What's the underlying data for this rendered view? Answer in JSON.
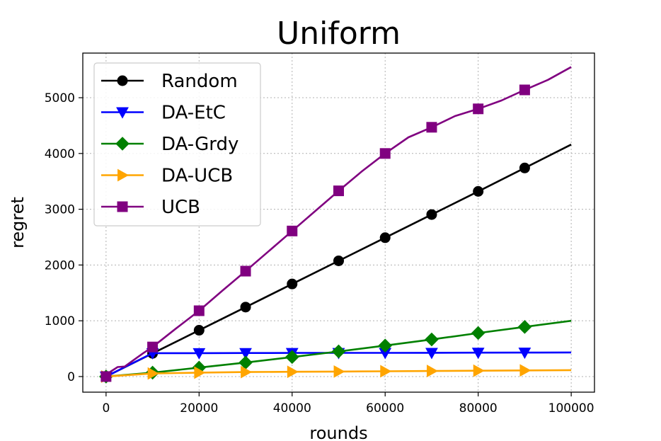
{
  "chart_data": {
    "type": "line",
    "title": "Uniform",
    "xlabel": "rounds",
    "ylabel": "regret",
    "xlim": [
      -5000,
      105000
    ],
    "ylim": [
      -280,
      5800
    ],
    "xticks": [
      0,
      20000,
      40000,
      60000,
      80000,
      100000
    ],
    "xtick_labels": [
      "0",
      "20000",
      "40000",
      "60000",
      "80000",
      "100000"
    ],
    "yticks": [
      0,
      1000,
      2000,
      3000,
      4000,
      5000
    ],
    "ytick_labels": [
      "0",
      "1000",
      "2000",
      "3000",
      "4000",
      "5000"
    ],
    "grid": true,
    "legend_position": "upper-left",
    "marker_x": [
      0,
      10000,
      20000,
      30000,
      40000,
      50000,
      60000,
      70000,
      80000,
      90000
    ],
    "series": [
      {
        "name": "Random",
        "color": "#000000",
        "marker": "circle",
        "x": [
          0,
          10000,
          20000,
          30000,
          40000,
          50000,
          60000,
          70000,
          80000,
          90000,
          100000
        ],
        "values": [
          0,
          415,
          830,
          1245,
          1660,
          2075,
          2490,
          2905,
          3320,
          3740,
          4160
        ]
      },
      {
        "name": "DA-EtC",
        "color": "#0000ff",
        "marker": "triangle-down",
        "x": [
          0,
          10000,
          20000,
          30000,
          40000,
          50000,
          60000,
          70000,
          80000,
          90000,
          100000
        ],
        "values": [
          0,
          420,
          420,
          422,
          423,
          424,
          425,
          426,
          428,
          430,
          432
        ]
      },
      {
        "name": "DA-Grdy",
        "color": "#008000",
        "marker": "diamond",
        "x": [
          0,
          10000,
          20000,
          30000,
          40000,
          50000,
          60000,
          70000,
          80000,
          90000,
          100000
        ],
        "values": [
          0,
          70,
          160,
          250,
          350,
          450,
          555,
          665,
          780,
          890,
          1000
        ]
      },
      {
        "name": "DA-UCB",
        "color": "#ffa500",
        "marker": "triangle-right",
        "x": [
          0,
          10000,
          20000,
          30000,
          40000,
          50000,
          60000,
          70000,
          80000,
          90000,
          100000
        ],
        "values": [
          0,
          55,
          70,
          80,
          85,
          90,
          95,
          100,
          105,
          110,
          115
        ]
      },
      {
        "name": "UCB",
        "color": "#800080",
        "marker": "square",
        "x": [
          0,
          1000,
          2500,
          4000,
          6000,
          8000,
          10000,
          15000,
          20000,
          25000,
          30000,
          35000,
          40000,
          45000,
          50000,
          55000,
          60000,
          65000,
          70000,
          75000,
          80000,
          85000,
          90000,
          95000,
          100000
        ],
        "values": [
          0,
          90,
          170,
          180,
          300,
          420,
          530,
          860,
          1180,
          1540,
          1890,
          2250,
          2610,
          2970,
          3330,
          3680,
          4000,
          4290,
          4470,
          4670,
          4800,
          4950,
          5140,
          5320,
          5550
        ]
      }
    ]
  }
}
